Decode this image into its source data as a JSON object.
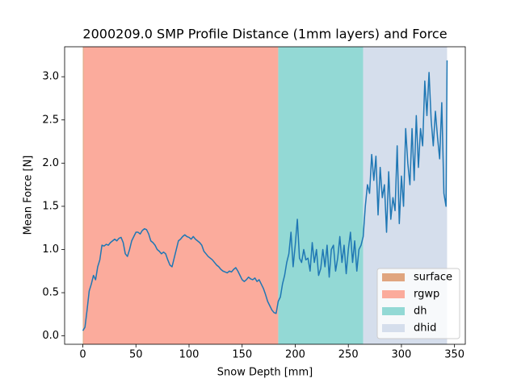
{
  "chart_data": {
    "type": "line",
    "title": "2000209.0 SMP Profile Distance (1mm layers) and Force",
    "xlabel": "Snow Depth [mm]",
    "ylabel": "Mean Force [N]",
    "color": "#1f77b4",
    "x": [
      0,
      2,
      4,
      6,
      8,
      10,
      12,
      14,
      16,
      18,
      20,
      22,
      24,
      26,
      28,
      30,
      32,
      34,
      36,
      38,
      40,
      42,
      44,
      46,
      48,
      50,
      52,
      54,
      56,
      58,
      60,
      62,
      64,
      66,
      68,
      70,
      72,
      74,
      76,
      78,
      80,
      82,
      84,
      86,
      88,
      90,
      92,
      94,
      96,
      98,
      100,
      102,
      104,
      106,
      108,
      110,
      112,
      114,
      116,
      118,
      120,
      122,
      124,
      126,
      128,
      130,
      132,
      134,
      136,
      138,
      140,
      142,
      144,
      146,
      148,
      150,
      152,
      154,
      156,
      158,
      160,
      162,
      164,
      166,
      168,
      170,
      172,
      174,
      176,
      178,
      180,
      182,
      184,
      186,
      188,
      190,
      192,
      194,
      196,
      198,
      200,
      202,
      204,
      206,
      208,
      210,
      212,
      214,
      216,
      218,
      220,
      222,
      224,
      226,
      228,
      230,
      232,
      234,
      236,
      238,
      240,
      242,
      244,
      246,
      248,
      250,
      252,
      254,
      256,
      258,
      260,
      262,
      264,
      266,
      268,
      270,
      272,
      274,
      276,
      278,
      280,
      282,
      284,
      286,
      288,
      290,
      292,
      294,
      296,
      298,
      300,
      302,
      304,
      306,
      308,
      310,
      312,
      314,
      316,
      318,
      320,
      322,
      324,
      326,
      328,
      330,
      332,
      334,
      336,
      338,
      340,
      342,
      343
    ],
    "values": [
      0.06,
      0.1,
      0.3,
      0.52,
      0.6,
      0.7,
      0.65,
      0.8,
      0.88,
      1.05,
      1.04,
      1.06,
      1.05,
      1.08,
      1.1,
      1.12,
      1.1,
      1.13,
      1.14,
      1.08,
      0.95,
      0.92,
      1.0,
      1.1,
      1.15,
      1.2,
      1.2,
      1.18,
      1.22,
      1.24,
      1.23,
      1.18,
      1.1,
      1.08,
      1.05,
      1.0,
      0.98,
      0.95,
      0.97,
      0.95,
      0.88,
      0.82,
      0.8,
      0.9,
      1.0,
      1.1,
      1.12,
      1.15,
      1.17,
      1.15,
      1.14,
      1.12,
      1.15,
      1.12,
      1.1,
      1.08,
      1.05,
      0.98,
      0.95,
      0.92,
      0.9,
      0.88,
      0.85,
      0.82,
      0.8,
      0.77,
      0.75,
      0.74,
      0.73,
      0.75,
      0.74,
      0.77,
      0.79,
      0.75,
      0.7,
      0.65,
      0.63,
      0.65,
      0.68,
      0.66,
      0.65,
      0.67,
      0.63,
      0.65,
      0.6,
      0.55,
      0.48,
      0.4,
      0.35,
      0.3,
      0.27,
      0.26,
      0.4,
      0.45,
      0.6,
      0.7,
      0.85,
      0.95,
      1.2,
      0.8,
      1.05,
      1.35,
      0.9,
      0.85,
      1.0,
      0.88,
      0.9,
      0.75,
      1.08,
      0.85,
      1.0,
      0.7,
      0.78,
      1.0,
      0.8,
      1.05,
      0.68,
      1.0,
      1.05,
      0.75,
      0.9,
      1.15,
      0.85,
      1.05,
      0.72,
      1.0,
      1.2,
      0.85,
      1.1,
      0.75,
      1.0,
      1.05,
      1.15,
      1.5,
      1.75,
      1.65,
      2.1,
      1.8,
      2.08,
      1.4,
      1.95,
      1.6,
      1.75,
      1.2,
      1.9,
      1.35,
      1.6,
      1.45,
      2.2,
      1.3,
      1.85,
      1.5,
      2.4,
      2.0,
      1.75,
      2.4,
      1.8,
      2.55,
      1.95,
      2.4,
      2.2,
      2.95,
      2.55,
      3.05,
      2.5,
      2.2,
      2.6,
      2.3,
      2.05,
      2.7,
      1.65,
      1.5,
      3.19
    ],
    "spans": [
      {
        "name": "surface",
        "start": 0,
        "end": 1,
        "color": "#e0a57f"
      },
      {
        "name": "rgwp",
        "start": 1,
        "end": 184,
        "color": "#fbab9c"
      },
      {
        "name": "dh",
        "start": 184,
        "end": 264,
        "color": "#93d9d5"
      },
      {
        "name": "dhid",
        "start": 264,
        "end": 343,
        "color": "#d5deec"
      }
    ],
    "xlim": [
      -17.15,
      360.15
    ],
    "ylim": [
      -0.097,
      3.347
    ],
    "xticks": [
      0,
      50,
      100,
      150,
      200,
      250,
      300,
      350
    ],
    "yticks": [
      {
        "value": 0,
        "label": "0.0"
      },
      0.5,
      {
        "value": 1,
        "label": "1.0"
      },
      1.5,
      {
        "value": 2,
        "label": "2.0"
      },
      2.5,
      {
        "value": 3,
        "label": "3.0"
      }
    ],
    "legend": "lower right"
  }
}
